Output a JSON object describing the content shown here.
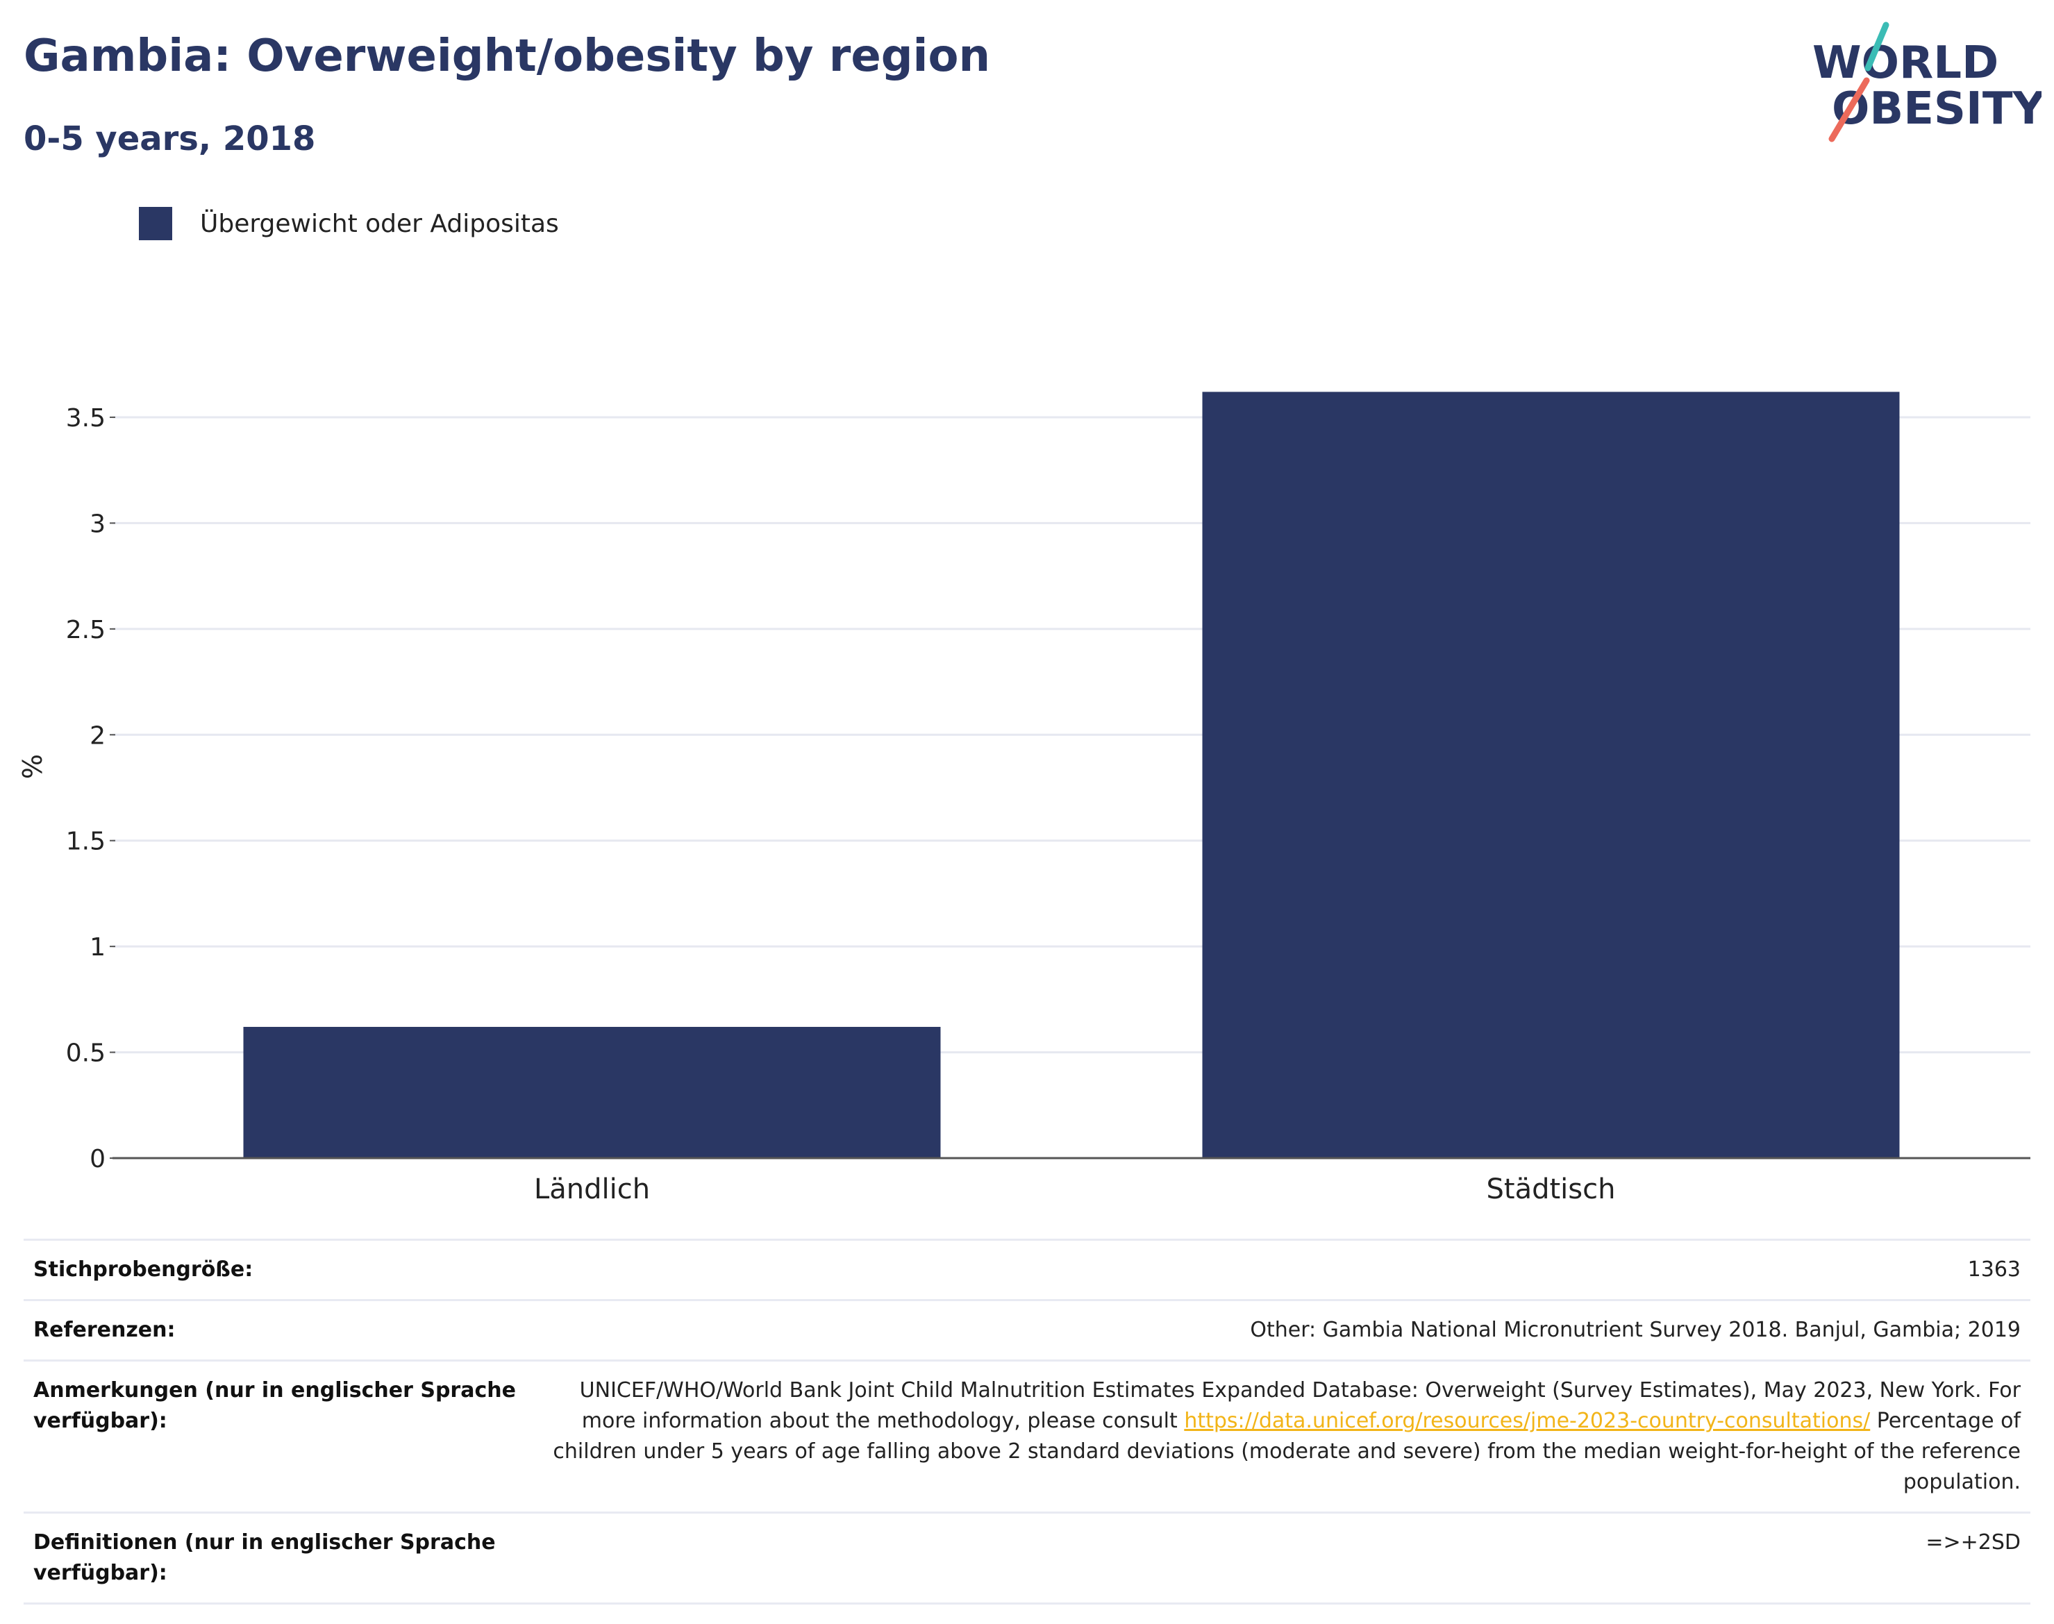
{
  "header": {
    "title": "Gambia: Overweight/obesity by region",
    "subtitle": "0-5 years, 2018"
  },
  "logo": {
    "line1": "WORLD",
    "line2": "OBESITY",
    "colors": {
      "text": "#2a3764",
      "slash_teal": "#3bbcb5",
      "slash_coral": "#ec6a5b"
    }
  },
  "legend": {
    "label": "Übergewicht oder Adipositas",
    "color": "#2a3764"
  },
  "chart_data": {
    "type": "bar",
    "categories": [
      "Ländlich",
      "Städtisch"
    ],
    "series": [
      {
        "name": "Übergewicht oder Adipositas",
        "values": [
          0.62,
          3.62
        ],
        "color": "#2a3764"
      }
    ],
    "ylabel": "%",
    "xlabel": "",
    "ylim": [
      0,
      3.7
    ],
    "yticks": [
      0,
      0.5,
      1,
      1.5,
      2,
      2.5,
      3,
      3.5
    ],
    "ytick_labels": [
      "0",
      "0.5",
      "1",
      "1.5",
      "2",
      "2.5",
      "3",
      "3.5"
    ],
    "grid": true,
    "legend_position": "top-left"
  },
  "meta": {
    "sample_label": "Stichprobengröße:",
    "sample_value": "1363",
    "references_label": "Referenzen:",
    "references_value": "Other: Gambia National Micronutrient Survey 2018. Banjul, Gambia; 2019",
    "notes_label": "Anmerkungen (nur in englischer Sprache verfügbar):",
    "notes_text1": "UNICEF/WHO/World Bank Joint Child Malnutrition Estimates Expanded Database: Overweight (Survey Estimates), May 2023, New York. For more information about the methodology, please consult ",
    "notes_link": "https://data.unicef.org/resources/jme-2023-country-consultations/",
    "notes_text2": " Percentage of children under 5 years of age falling above 2 standard deviations (moderate and severe) from the median weight-for-height of the reference population.",
    "definitions_label": "Definitionen (nur in englischer Sprache verfügbar):",
    "definitions_value": "=>+2SD"
  }
}
